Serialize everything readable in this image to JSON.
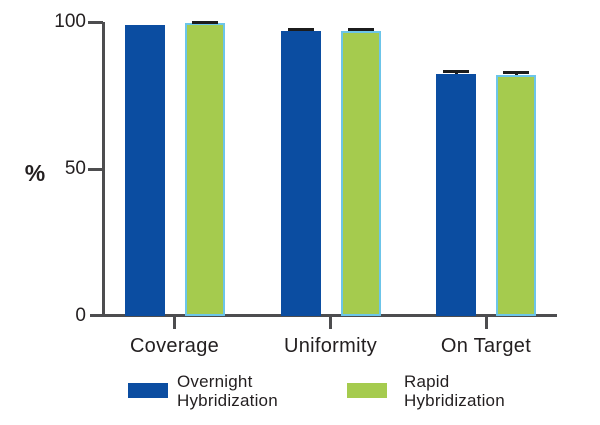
{
  "figure": {
    "background": "#ffffff",
    "text_color": "#231f20",
    "axis_color": "#4d4d4f"
  },
  "chart_data": {
    "type": "bar",
    "title": "",
    "xlabel": "",
    "ylabel": "%",
    "ylim": [
      0,
      100
    ],
    "y_ticks": [
      0,
      50,
      100
    ],
    "grid": false,
    "legend_position": "bottom",
    "error_bar_color": "#1c1c1c",
    "categories": [
      "Coverage",
      "Uniformity",
      "On Target"
    ],
    "series": [
      {
        "name": "Overnight Hybridization",
        "color": "#0b4da1",
        "values": [
          99.0,
          97.0,
          82.4
        ],
        "errors": [
          0,
          0.5,
          0.7
        ]
      },
      {
        "name": "Rapid Hybridization",
        "color": "#a5cb4e",
        "border_color": "#6cc5e9",
        "values": [
          99.7,
          96.8,
          82.0
        ],
        "errors": [
          0.3,
          0.5,
          0.7
        ]
      }
    ]
  },
  "legend": {
    "items": [
      {
        "label": "Overnight Hybridization",
        "color": "#0b4da1"
      },
      {
        "label": "Rapid Hybridization",
        "color": "#a5cb4e"
      }
    ]
  }
}
